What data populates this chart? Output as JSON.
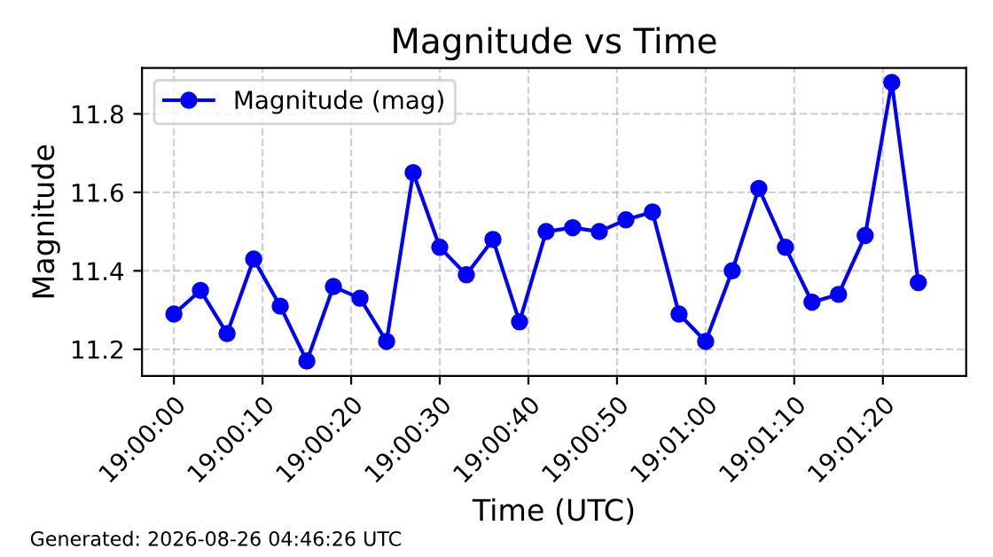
{
  "chart_data": {
    "type": "line",
    "title": "Magnitude vs Time",
    "xlabel": "Time (UTC)",
    "ylabel": "Magnitude",
    "x": [
      19.0,
      19.000833,
      19.001667,
      19.0025,
      19.003333,
      19.004167,
      19.005,
      19.005833,
      19.006667,
      19.0075,
      19.008333,
      19.009167,
      19.01,
      19.010833,
      19.011667,
      19.0125,
      19.013333,
      19.014167,
      19.015,
      19.015833,
      19.016667,
      19.0175,
      19.018333,
      19.019167,
      19.02,
      19.020833,
      19.021667,
      19.0225,
      19.023333
    ],
    "series": [
      {
        "name": "Magnitude (mag)",
        "color": "#0000ff",
        "values": [
          11.29,
          11.35,
          11.24,
          11.43,
          11.31,
          11.17,
          11.36,
          11.33,
          11.22,
          11.65,
          11.46,
          11.39,
          11.48,
          11.27,
          11.5,
          11.51,
          11.5,
          11.53,
          11.55,
          11.29,
          11.22,
          11.4,
          11.61,
          11.46,
          11.32,
          11.34,
          11.49,
          11.88,
          11.37
        ]
      }
    ],
    "xlim": [
      18.999,
      19.024833
    ],
    "xticks": [
      {
        "value": 19.0,
        "label": "19:00:00"
      },
      {
        "value": 19.002778,
        "label": "19:00:10"
      },
      {
        "value": 19.005556,
        "label": "19:00:20"
      },
      {
        "value": 19.008333,
        "label": "19:00:30"
      },
      {
        "value": 19.011111,
        "label": "19:00:40"
      },
      {
        "value": 19.013889,
        "label": "19:00:50"
      },
      {
        "value": 19.016667,
        "label": "19:01:00"
      },
      {
        "value": 19.019444,
        "label": "19:01:10"
      },
      {
        "value": 19.022222,
        "label": "19:01:20"
      }
    ],
    "ylim": [
      11.132,
      11.917
    ],
    "yticks": [
      11.2,
      11.4,
      11.6,
      11.8
    ],
    "grid": true,
    "legend": "top left",
    "marker": "circle",
    "line_style": "solid",
    "annotations": [
      "Generated: 2026-08-26 04:46:26 UTC"
    ]
  }
}
